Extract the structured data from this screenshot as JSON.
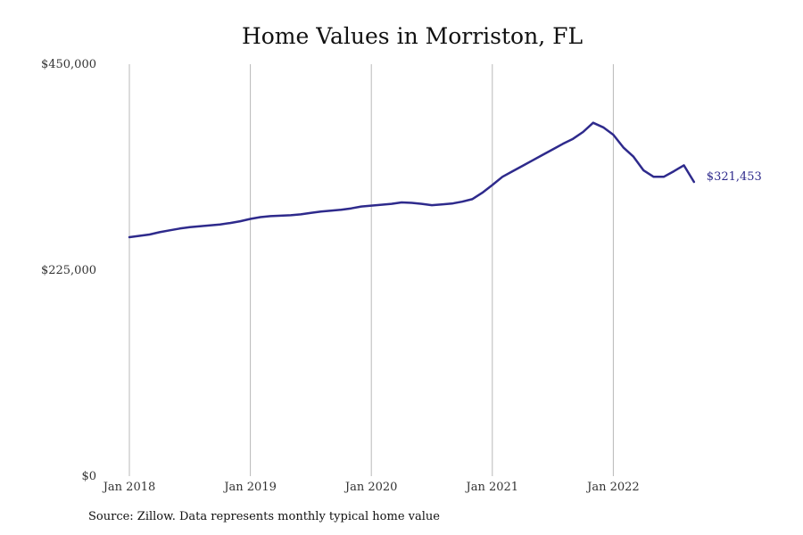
{
  "chart_data": {
    "type": "line",
    "title": "Home Values in Morriston, FL",
    "xlabel": "",
    "ylabel": "",
    "x_range": [
      "Jan 2018",
      "Sep 2022"
    ],
    "ylim": [
      0,
      450000
    ],
    "y_ticks": [
      {
        "value": 450000,
        "label": "$450,000"
      },
      {
        "value": 225000,
        "label": "$225,000"
      },
      {
        "value": 0,
        "label": "$0"
      }
    ],
    "x_ticks": [
      {
        "month_index": 0,
        "label": "Jan 2018"
      },
      {
        "month_index": 12,
        "label": "Jan 2019"
      },
      {
        "month_index": 24,
        "label": "Jan 2020"
      },
      {
        "month_index": 36,
        "label": "Jan 2021"
      },
      {
        "month_index": 48,
        "label": "Jan 2022"
      }
    ],
    "grid": "vertical lines at year ticks",
    "line_color": "#2e2a8c",
    "grid_color": "#b8b8b8",
    "series": [
      {
        "dates": [
          "2018-01",
          "2018-02",
          "2018-03",
          "2018-04",
          "2018-05",
          "2018-06",
          "2018-07",
          "2018-08",
          "2018-09",
          "2018-10",
          "2018-11",
          "2018-12",
          "2019-01",
          "2019-02",
          "2019-03",
          "2019-04",
          "2019-05",
          "2019-06",
          "2019-07",
          "2019-08",
          "2019-09",
          "2019-10",
          "2019-11",
          "2019-12",
          "2020-01",
          "2020-02",
          "2020-03",
          "2020-04",
          "2020-05",
          "2020-06",
          "2020-07",
          "2020-08",
          "2020-09",
          "2020-10",
          "2020-11",
          "2020-12",
          "2021-01",
          "2021-02",
          "2021-03",
          "2021-04",
          "2021-05",
          "2021-06",
          "2021-07",
          "2021-08",
          "2021-09",
          "2021-10",
          "2021-11",
          "2021-12",
          "2022-01",
          "2022-02",
          "2022-03",
          "2022-04",
          "2022-05",
          "2022-06",
          "2022-07",
          "2022-08",
          "2022-09"
        ],
        "values": [
          261000,
          262500,
          264000,
          266500,
          268500,
          270500,
          272000,
          273000,
          274000,
          275000,
          276500,
          278500,
          281000,
          283000,
          284000,
          284500,
          285000,
          286000,
          287500,
          289000,
          290000,
          291000,
          292500,
          294500,
          295500,
          296500,
          297500,
          299000,
          298500,
          297500,
          296000,
          296800,
          297800,
          299800,
          302500,
          309500,
          318000,
          327000,
          333000,
          339000,
          345000,
          351000,
          357000,
          363000,
          368500,
          376000,
          386000,
          381000,
          373000,
          359000,
          349000,
          334000,
          327000,
          327000,
          333000,
          339500,
          321453
        ]
      }
    ],
    "end_label": "$321,453",
    "source": "Source: Zillow. Data represents monthly typical home value"
  }
}
